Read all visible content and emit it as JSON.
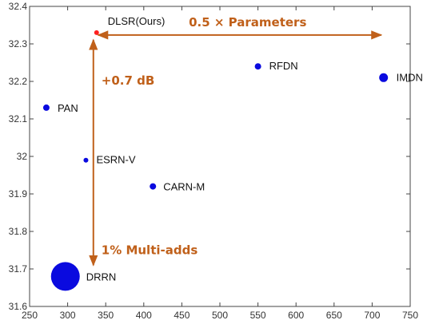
{
  "chart_data": {
    "type": "scatter",
    "title": "",
    "xlabel": "",
    "ylabel": "",
    "xlim": [
      250,
      750
    ],
    "ylim": [
      31.6,
      32.4
    ],
    "x_ticks": [
      "250",
      "300",
      "350",
      "400",
      "450",
      "500",
      "550",
      "600",
      "650",
      "700",
      "750"
    ],
    "y_ticks": [
      "31.6",
      "31.7",
      "31.8",
      "31.9",
      "32",
      "32.1",
      "32.2",
      "32.3",
      "32.4"
    ],
    "grid": false,
    "points": [
      {
        "label": "DLSR(Ours)",
        "x": 338,
        "y": 32.33,
        "size": 1,
        "color": "#ff2020"
      },
      {
        "label": "RFDN",
        "x": 550,
        "y": 32.24,
        "size": 2,
        "color": "#0a0adf"
      },
      {
        "label": "IMDN",
        "x": 715,
        "y": 32.21,
        "size": 3,
        "color": "#0a0adf"
      },
      {
        "label": "PAN",
        "x": 272,
        "y": 32.13,
        "size": 2,
        "color": "#0a0adf"
      },
      {
        "label": "ESRN-V",
        "x": 324,
        "y": 31.99,
        "size": 1.2,
        "color": "#0a0adf"
      },
      {
        "label": "CARN-M",
        "x": 412,
        "y": 31.92,
        "size": 2,
        "color": "#0a0adf"
      },
      {
        "label": "DRRN",
        "x": 297,
        "y": 31.68,
        "size": 10,
        "color": "#0a0adf"
      }
    ],
    "annotations": {
      "horizontal": {
        "text": "0.5 × Parameters",
        "x1": 340,
        "x2": 712,
        "y": 32.33
      },
      "vertical_top": {
        "text": "+0.7 dB"
      },
      "vertical_bottom": {
        "text": "1% Multi-adds"
      },
      "vertical": {
        "x": 338,
        "y1": 32.33,
        "y2": 31.68
      },
      "color": "#c0601a"
    }
  }
}
